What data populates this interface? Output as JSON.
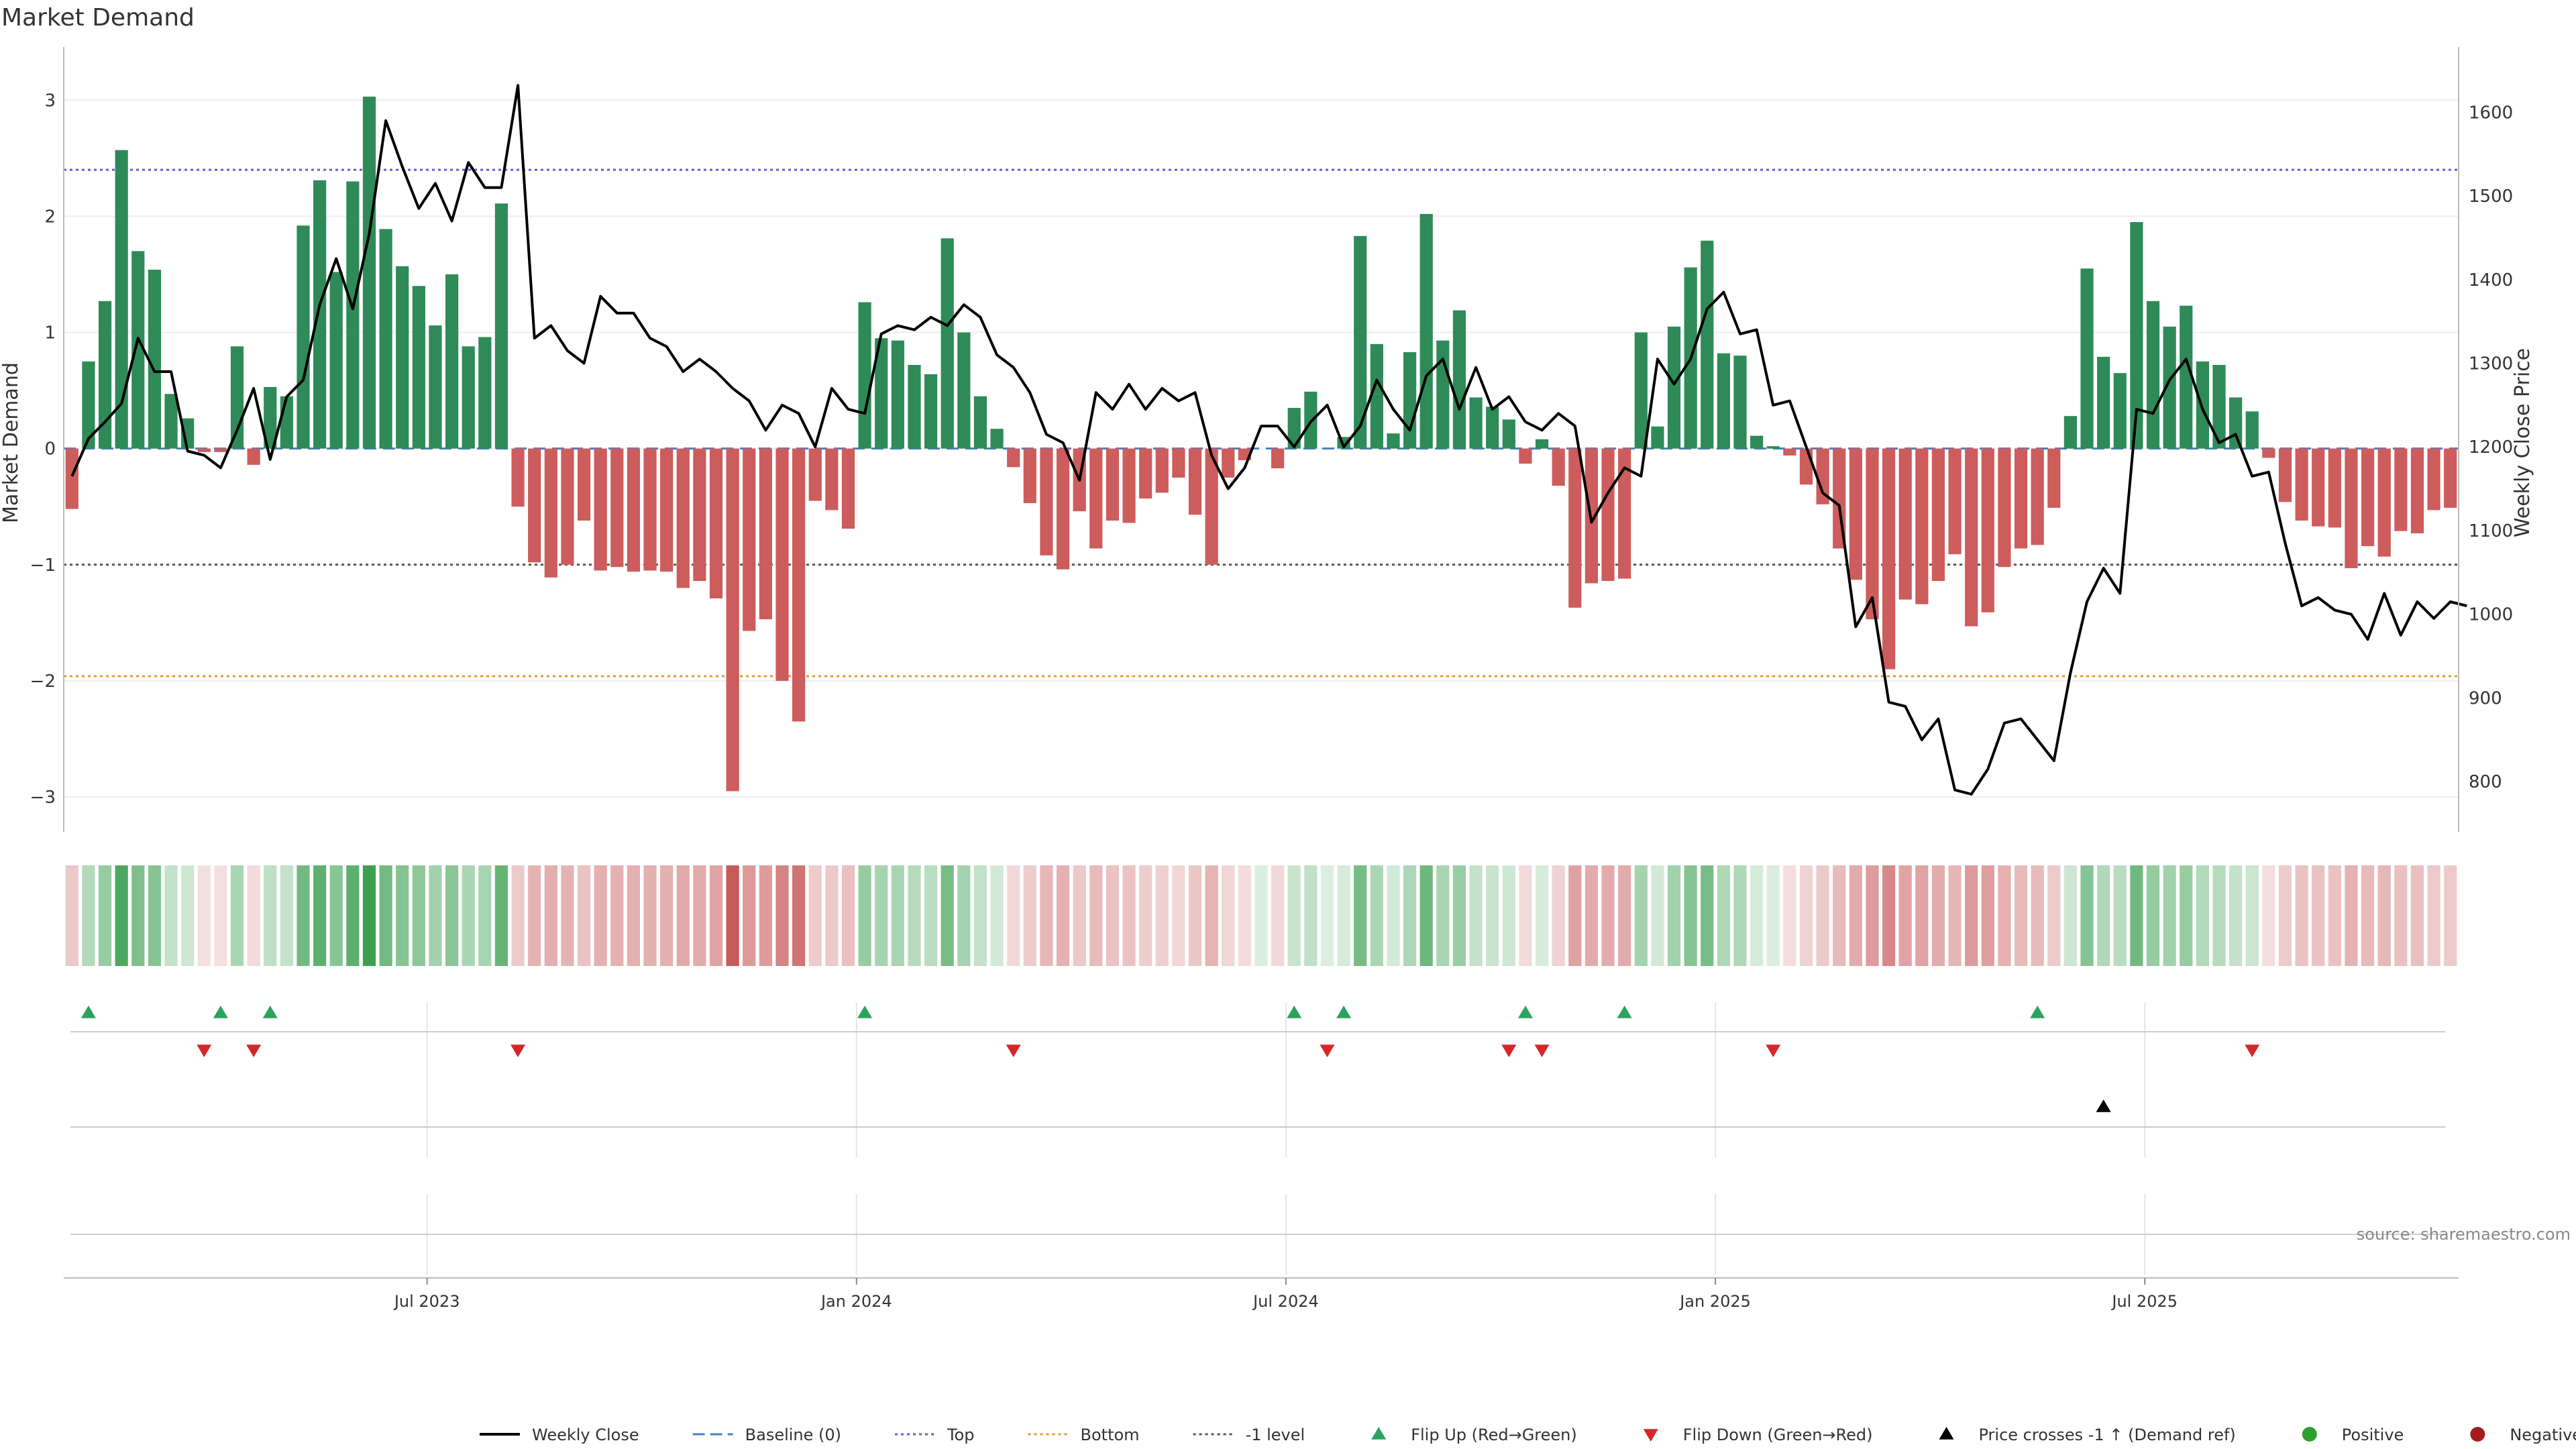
{
  "title": "Market Demand",
  "source": "source: sharemaestro.com",
  "colors": {
    "positive_bar": "#2e8b57",
    "negative_bar": "#cd5c5c",
    "price_line": "#000000",
    "top_line": "#6a5acd",
    "bottom_line": "#e69a2e",
    "neg1_line": "#555555",
    "baseline": "#4a7fc1",
    "flip_up": "#2ca25f",
    "flip_down": "#d62728",
    "positive_dot": "#2ca02c",
    "negative_dot": "#a51c1c"
  },
  "chart_data": {
    "type": "bar",
    "title": "Market Demand",
    "ylabel_left": "Market Demand",
    "ylabel_right": "Weekly Close Price",
    "ylim_left": [
      -3.3,
      3.4
    ],
    "ylim_right": [
      740,
      1670
    ],
    "yticks_left": [
      3,
      2,
      1,
      0,
      -1,
      -2,
      -3
    ],
    "ytick_labels_left": [
      "3",
      "2",
      "1",
      "0",
      "−1",
      "−2",
      "−3"
    ],
    "yticks_right": [
      1600,
      1500,
      1400,
      1300,
      1200,
      1100,
      1000,
      900,
      800
    ],
    "xticks": [
      {
        "label": "Jul 2023",
        "week": 22
      },
      {
        "label": "Jan 2024",
        "week": 48
      },
      {
        "label": "Jul 2024",
        "week": 74
      },
      {
        "label": "Jan 2025",
        "week": 100
      },
      {
        "label": "Jul 2025",
        "week": 126
      }
    ],
    "reference_lines": {
      "top": 2.4,
      "bottom": -1.96,
      "neg1": -1.0,
      "baseline": 0
    },
    "demand": [
      -0.52,
      0.75,
      1.27,
      2.57,
      1.7,
      1.54,
      0.47,
      0.26,
      -0.03,
      -0.03,
      0.88,
      -0.14,
      0.53,
      0.45,
      1.92,
      2.31,
      1.52,
      2.3,
      3.03,
      1.89,
      1.57,
      1.4,
      1.06,
      1.5,
      0.88,
      0.96,
      2.11,
      -0.5,
      -0.98,
      -1.11,
      -1.0,
      -0.62,
      -1.05,
      -1.02,
      -1.06,
      -1.05,
      -1.06,
      -1.2,
      -1.14,
      -1.29,
      -2.95,
      -1.57,
      -1.47,
      -2.0,
      -2.35,
      -0.45,
      -0.53,
      -0.69,
      1.26,
      0.95,
      0.93,
      0.72,
      0.64,
      1.81,
      1.0,
      0.45,
      0.17,
      -0.16,
      -0.47,
      -0.92,
      -1.04,
      -0.54,
      -0.86,
      -0.62,
      -0.64,
      -0.43,
      -0.38,
      -0.25,
      -0.57,
      -1.0,
      -0.25,
      -0.1,
      0,
      -0.17,
      0.35,
      0.49,
      0,
      0.1,
      1.83,
      0.9,
      0.13,
      0.83,
      2.02,
      0.93,
      1.19,
      0.44,
      0.36,
      0.25,
      -0.13,
      0.08,
      -0.32,
      -1.37,
      -1.16,
      -1.14,
      -1.12,
      1.0,
      0.19,
      1.05,
      1.56,
      1.79,
      0.82,
      0.8,
      0.11,
      0.02,
      -0.06,
      -0.31,
      -0.48,
      -0.86,
      -1.13,
      -1.47,
      -1.9,
      -1.3,
      -1.34,
      -1.14,
      -0.91,
      -1.53,
      -1.41,
      -1.02,
      -0.86,
      -0.83,
      -0.51,
      0.28,
      1.55,
      0.79,
      0.65,
      1.95,
      1.27,
      1.05,
      1.23,
      0.75,
      0.72,
      0.44,
      0.32,
      -0.08,
      -0.46,
      -0.62,
      -0.67,
      -0.68,
      -1.03,
      -0.84,
      -0.93,
      -0.71,
      -0.73,
      -0.53,
      -0.51
    ],
    "price": [
      1165,
      1210,
      1230,
      1252,
      1330,
      1290,
      1290,
      1195,
      1190,
      1175,
      1220,
      1270,
      1185,
      1260,
      1280,
      1370,
      1425,
      1365,
      1455,
      1590,
      1535,
      1485,
      1515,
      1470,
      1540,
      1510,
      1510,
      1632,
      1330,
      1345,
      1315,
      1300,
      1380,
      1360,
      1360,
      1330,
      1320,
      1290,
      1305,
      1290,
      1270,
      1255,
      1220,
      1250,
      1240,
      1200,
      1270,
      1245,
      1240,
      1335,
      1345,
      1340,
      1355,
      1345,
      1370,
      1355,
      1310,
      1295,
      1265,
      1215,
      1205,
      1160,
      1265,
      1245,
      1275,
      1245,
      1270,
      1255,
      1265,
      1190,
      1150,
      1175,
      1225,
      1225,
      1200,
      1230,
      1250,
      1200,
      1225,
      1280,
      1245,
      1220,
      1285,
      1305,
      1245,
      1295,
      1245,
      1260,
      1230,
      1220,
      1240,
      1225,
      1110,
      1145,
      1175,
      1165,
      1305,
      1275,
      1305,
      1365,
      1385,
      1335,
      1340,
      1250,
      1255,
      1200,
      1145,
      1130,
      985,
      1020,
      895,
      890,
      850,
      875,
      790,
      785,
      815,
      870,
      875,
      850,
      825,
      930,
      1015,
      1055,
      1025,
      1245,
      1240,
      1280,
      1305,
      1245,
      1205,
      1215,
      1165,
      1170,
      1085,
      1010,
      1020,
      1005,
      1000,
      970,
      1025,
      975,
      1015,
      995,
      1015,
      1010
    ],
    "flip_up_weeks": [
      1,
      9,
      12,
      48,
      74,
      77,
      88,
      94,
      119
    ],
    "flip_down_weeks": [
      8,
      11,
      27,
      57,
      76,
      87,
      89,
      103,
      132
    ],
    "price_cross_weeks": [
      123
    ]
  },
  "legend": [
    {
      "label": "Weekly Close",
      "icon": "solid-line-icon"
    },
    {
      "label": "Baseline (0)",
      "icon": "dashed-line-icon"
    },
    {
      "label": "Top",
      "icon": "dotted-line-icon"
    },
    {
      "label": "Bottom",
      "icon": "dotted-line-icon"
    },
    {
      "label": "-1 level",
      "icon": "dotted-line-icon"
    },
    {
      "label": "Flip Up (Red→Green)",
      "icon": "triangle-up-icon"
    },
    {
      "label": "Flip Down (Green→Red)",
      "icon": "triangle-down-icon"
    },
    {
      "label": "Price crosses -1 ↑ (Demand ref)",
      "icon": "triangle-up-icon"
    },
    {
      "label": "Positive",
      "icon": "circle-icon"
    },
    {
      "label": "Negative",
      "icon": "circle-icon"
    }
  ]
}
